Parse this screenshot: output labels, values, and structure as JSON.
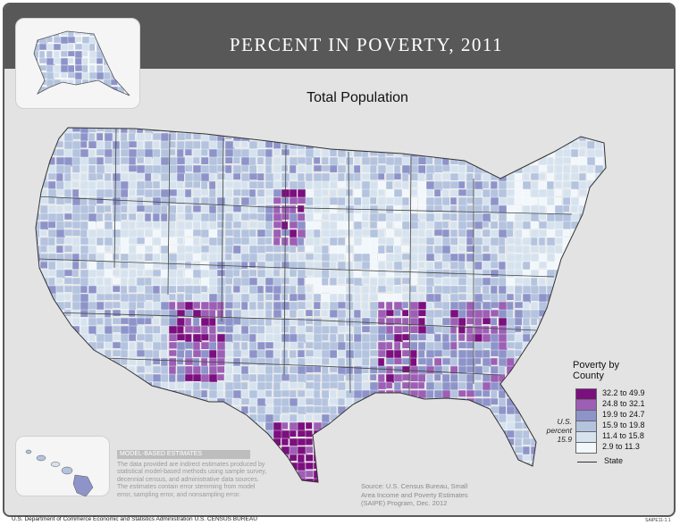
{
  "title": "PERCENT IN POVERTY, 2011",
  "subtitle": "Total Population",
  "legend": {
    "title_line1": "Poverty by",
    "title_line2": "County",
    "classes": [
      {
        "label": "32.2 to 49.9",
        "color": "#7b0f7e"
      },
      {
        "label": "24.8 to 32.1",
        "color": "#9c5fb4"
      },
      {
        "label": "19.9 to 24.7",
        "color": "#8e94c9"
      },
      {
        "label": "15.9 to 19.8",
        "color": "#b4c3de"
      },
      {
        "label": "11.4 to 15.8",
        "color": "#d6e3ef"
      },
      {
        "label": "2.9 to 11.3",
        "color": "#f1f7fb"
      }
    ],
    "us_percent_line1": "U.S.",
    "us_percent_line2": "percent",
    "us_percent_value": "15.9",
    "state_label": "State"
  },
  "model_based": {
    "header": "MODEL-BASED ESTIMATES",
    "text": "The data provided are indirect estimates produced by statistical model-based methods using sample survey, decennial census, and administrative data sources. The estimates contain error stemming from model error, sampling error, and nonsampling error."
  },
  "source": {
    "line1": "Source: U.S. Census Bureau, Small",
    "line2": "Area Income and Poverty Estimates",
    "line3": "(SAIPE) Program, Dec. 2012"
  },
  "footer": {
    "left": "U.S. Department of Commerce  Economic and Statistics Administration  U.S. CENSUS BUREAU",
    "right": "SAIPE11-1.1"
  },
  "insets": [
    "Alaska",
    "Hawaii"
  ]
}
